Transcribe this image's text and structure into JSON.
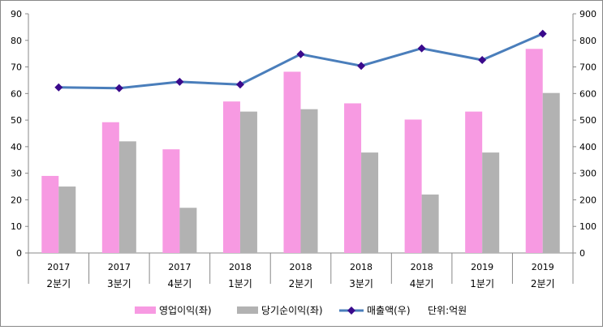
{
  "chart_data": {
    "type": "bar+line",
    "categories": [
      [
        "2017",
        "2분기"
      ],
      [
        "2017",
        "3분기"
      ],
      [
        "2017",
        "4분기"
      ],
      [
        "2018",
        "1분기"
      ],
      [
        "2018",
        "2분기"
      ],
      [
        "2018",
        "3분기"
      ],
      [
        "2018",
        "4분기"
      ],
      [
        "2019",
        "1분기"
      ],
      [
        "2019",
        "2분기"
      ]
    ],
    "series": [
      {
        "name": "영업이익(좌)",
        "type": "bar",
        "axis": "left",
        "color": "#f79ae2",
        "values": [
          29,
          49.2,
          39,
          57,
          68.2,
          56.3,
          50.2,
          53.2,
          76.8
        ]
      },
      {
        "name": "당기순이익(좌)",
        "type": "bar",
        "axis": "left",
        "color": "#b2b2b2",
        "values": [
          25,
          42,
          17,
          53.2,
          54.1,
          37.8,
          22,
          37.8,
          60.2
        ]
      },
      {
        "name": "매출액(우)",
        "type": "line",
        "axis": "right",
        "color": "#4a7ebb",
        "marker_color": "#3a0a8c",
        "values": [
          623,
          620,
          644,
          634,
          748,
          704,
          770,
          726,
          825
        ]
      }
    ],
    "unit_note": "단위:억원",
    "left_axis": {
      "range": [
        0,
        90
      ],
      "ticks": [
        0,
        10,
        20,
        30,
        40,
        50,
        60,
        70,
        80,
        90
      ]
    },
    "right_axis": {
      "range": [
        0,
        900
      ],
      "ticks": [
        0,
        100,
        200,
        300,
        400,
        500,
        600,
        700,
        800,
        900
      ]
    },
    "legend": "bottom"
  }
}
